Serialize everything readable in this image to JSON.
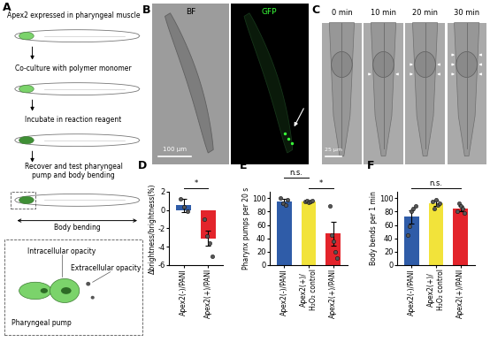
{
  "panels": {
    "A": {
      "label": "A",
      "steps": [
        "Apex2 expressed in pharyngeal muscle",
        "Co-culture with polymer monomer",
        "Incubate in reaction reagent",
        "Recover and test pharyngeal\npump and body bending"
      ],
      "arrow_label": "Body bending",
      "inset": {
        "intracellular": "Intracellular opacity",
        "pump": "Pharyngeal pump",
        "extracellular": "Extracellular opacity"
      }
    },
    "B": {
      "label": "B",
      "images": [
        "BF",
        "GFP"
      ],
      "scale_bar": "100 µm"
    },
    "C": {
      "label": "C",
      "times": [
        "0 min",
        "10 min",
        "20 min",
        "30 min"
      ],
      "scale_bar": "25 µm"
    }
  },
  "chart_data": [
    {
      "type": "bar",
      "title": "D",
      "categories": [
        "Apex2(-)/PANI",
        "Apex2(+)/PANI"
      ],
      "values": [
        0.5,
        -3.1
      ],
      "errors": [
        0.7,
        0.8
      ],
      "points": [
        [
          1.2,
          0.3,
          -0.1
        ],
        [
          -1.0,
          -2.8,
          -3.6,
          -5.0
        ]
      ],
      "colors": [
        "#2f5ca8",
        "#e3242b"
      ],
      "y_label": "Δbrightness/brightness(%)",
      "ylim": [
        -6,
        2
      ],
      "yticks": [
        -6,
        -4,
        -2,
        0,
        2
      ],
      "annotations": [
        {
          "text": "*",
          "between": [
            "Apex2(-)/PANI",
            "Apex2(+)/PANI"
          ]
        }
      ]
    },
    {
      "type": "bar",
      "title": "E",
      "categories": [
        "Apex2(-)/PANI",
        "Apex2(+)/\nH₂O₂ control",
        "Apex2(+)/PANI"
      ],
      "values": [
        95,
        95,
        47
      ],
      "errors": [
        4,
        1,
        18
      ],
      "points": [
        [
          100,
          92,
          90,
          98
        ],
        [
          95,
          96,
          94,
          95,
          96
        ],
        [
          88,
          45,
          35,
          20,
          10
        ]
      ],
      "colors": [
        "#2f5ca8",
        "#f2e33a",
        "#e3242b"
      ],
      "y_label": "Pharynx pumps per 20 s",
      "ylim": [
        0,
        110
      ],
      "yticks": [
        0,
        20,
        40,
        60,
        80,
        100
      ],
      "annotations": [
        {
          "text": "*",
          "between": [
            "Apex2(+)/\nH₂O₂ control",
            "Apex2(+)/PANI"
          ]
        },
        {
          "text": "n.s.",
          "between": [
            "Apex2(-)/PANI",
            "Apex2(+)/\nH₂O₂ control"
          ]
        }
      ]
    },
    {
      "type": "bar",
      "title": "F",
      "categories": [
        "Apex2(-)/PANI",
        "Apex2(+)/\nH₂O₂ control",
        "Apex2(+)/PANI"
      ],
      "values": [
        72,
        92,
        85
      ],
      "errors": [
        10,
        4,
        4
      ],
      "points": [
        [
          45,
          58,
          80,
          85,
          88
        ],
        [
          95,
          85,
          98,
          90,
          92
        ],
        [
          80,
          92,
          88,
          85,
          78
        ]
      ],
      "colors": [
        "#2f5ca8",
        "#f2e33a",
        "#e3242b"
      ],
      "y_label": "Body bends per 1 min",
      "ylim": [
        0,
        110
      ],
      "yticks": [
        0,
        20,
        40,
        60,
        80,
        100
      ],
      "annotations": [
        {
          "text": "n.s.",
          "between": [
            "Apex2(-)/PANI",
            "Apex2(+)/PANI"
          ]
        }
      ]
    }
  ]
}
